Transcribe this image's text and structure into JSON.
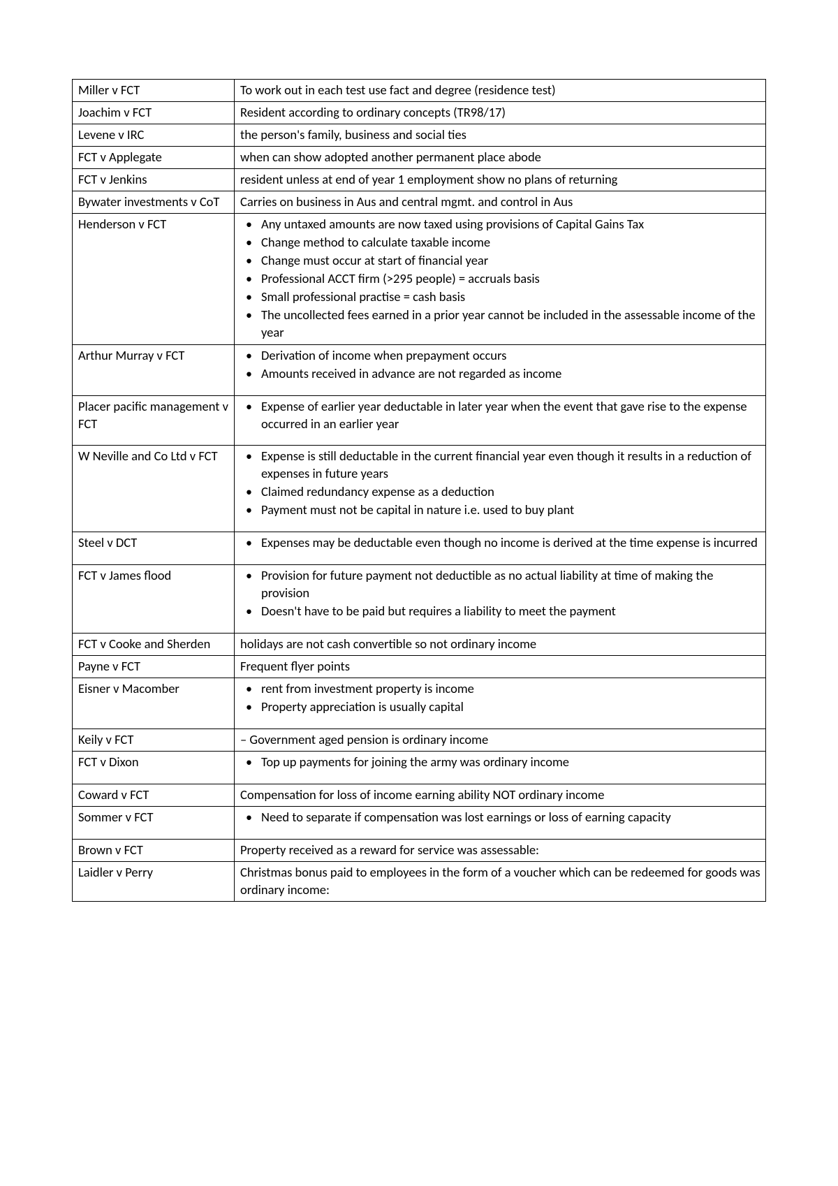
{
  "rows": [
    {
      "case": "Miller v FCT",
      "type": "text",
      "text": "To work out in each test use fact and degree (residence test)"
    },
    {
      "case": "Joachim v FCT",
      "type": "text",
      "text": "Resident according to ordinary concepts (TR98/17)"
    },
    {
      "case": "Levene v IRC",
      "type": "text",
      "text": "the person's family, business and social ties"
    },
    {
      "case": "FCT v Applegate",
      "type": "text",
      "text": "when can show adopted another permanent place abode"
    },
    {
      "case": "FCT v Jenkins",
      "type": "text",
      "text": "resident unless at end of year 1 employment show no plans of returning"
    },
    {
      "case": "Bywater investments v CoT",
      "type": "text",
      "text": "Carries on business in Aus and central mgmt. and control in Aus"
    },
    {
      "case": "Henderson v FCT",
      "type": "bullets",
      "items": [
        "Any untaxed amounts are now taxed using provisions of Capital Gains Tax",
        "Change method to calculate taxable income",
        "Change must occur at start of financial year",
        "Professional ACCT firm (>295 people) = accruals basis",
        "Small professional practise = cash basis",
        "The uncollected fees earned in a prior year cannot be included in the assessable income of the year"
      ]
    },
    {
      "case": "Arthur Murray v FCT",
      "type": "bullets",
      "spacer": true,
      "items": [
        "Derivation of income when prepayment occurs",
        "Amounts received in advance are not regarded as income"
      ]
    },
    {
      "case": "Placer pacific management v FCT",
      "type": "bullets",
      "spacer": true,
      "items": [
        "Expense of earlier year deductable in later year when the event that gave rise to the expense occurred in an earlier year"
      ]
    },
    {
      "case": "W Neville and Co Ltd v FCT",
      "type": "bullets",
      "spacer": true,
      "items": [
        "Expense is still deductable in the current financial year even though it results in a reduction of expenses in future years",
        "Claimed redundancy expense as a deduction",
        "Payment must not be capital in nature i.e. used to buy plant"
      ]
    },
    {
      "case": "Steel v DCT",
      "type": "bullets",
      "spacer": true,
      "items": [
        "Expenses may be deductable even though no income is derived at the time expense is incurred"
      ]
    },
    {
      "case": "FCT v James flood",
      "type": "bullets",
      "spacer": true,
      "items": [
        "Provision for future payment not deductible as no actual liability at time of making the provision",
        "Doesn't have to be paid but requires a liability to meet the payment"
      ]
    },
    {
      "case": "FCT v Cooke and Sherden",
      "type": "text",
      "text": "holidays are not cash convertible so not ordinary income"
    },
    {
      "case": "Payne v FCT",
      "type": "text",
      "text": "Frequent flyer points"
    },
    {
      "case": "Eisner v Macomber",
      "type": "bullets",
      "spacer": true,
      "items": [
        "rent from investment property is income",
        "Property appreciation is usually capital"
      ]
    },
    {
      "case": "Keily v FCT",
      "type": "dash",
      "text": "Government aged pension is ordinary income"
    },
    {
      "case": "FCT v Dixon",
      "type": "bullets",
      "spacer": true,
      "items": [
        "Top up payments for joining the army was ordinary income"
      ]
    },
    {
      "case": "Coward v FCT",
      "type": "text",
      "text": "Compensation for loss of income earning ability NOT ordinary income"
    },
    {
      "case": "Sommer v FCT",
      "type": "bullets",
      "spacer": true,
      "items": [
        "Need to separate if compensation was lost earnings or loss of earning capacity"
      ]
    },
    {
      "case": "Brown v FCT",
      "type": "text",
      "text": "Property received as a reward for service was assessable:"
    },
    {
      "case": "Laidler v Perry",
      "type": "text",
      "text": "Christmas bonus paid to employees in the form of a voucher which can be redeemed for goods was ordinary income:"
    }
  ]
}
